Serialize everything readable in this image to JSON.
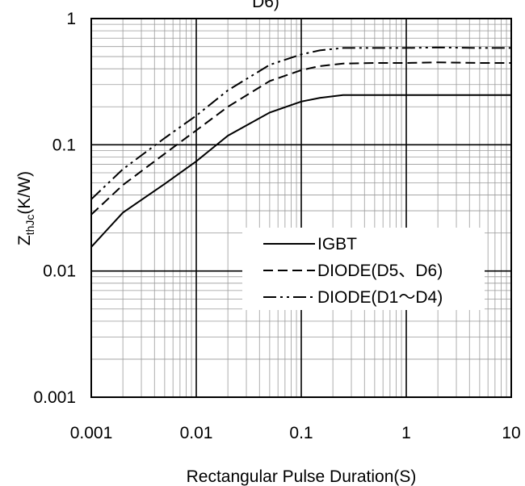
{
  "chart_data": {
    "type": "line",
    "title_fragment": "D6)",
    "xlabel": "Rectangular Pulse Duration(S)",
    "ylabel": {
      "main": "Z",
      "sub": "thJc",
      "unit": "(K/W)"
    },
    "x_scale": "log",
    "y_scale": "log",
    "xlim": [
      0.001,
      10
    ],
    "ylim": [
      0.001,
      1
    ],
    "x_ticks": [
      0.001,
      0.01,
      0.1,
      1,
      10
    ],
    "x_tick_labels": [
      "0.001",
      "0.01",
      "0.1",
      "1",
      "10"
    ],
    "y_ticks": [
      0.001,
      0.01,
      0.1,
      1
    ],
    "y_tick_labels": [
      "0.001",
      "0.01",
      "0.1",
      "1"
    ],
    "grid": true,
    "legend_position": "center-right",
    "series": [
      {
        "name": "IGBT",
        "line_style": "solid",
        "x": [
          0.001,
          0.002,
          0.005,
          0.01,
          0.02,
          0.05,
          0.1,
          0.15,
          0.25,
          0.5,
          1,
          2,
          5,
          10
        ],
        "y": [
          0.0155,
          0.029,
          0.049,
          0.074,
          0.118,
          0.18,
          0.22,
          0.235,
          0.248,
          0.248,
          0.248,
          0.248,
          0.248,
          0.248
        ]
      },
      {
        "name": "DIODE(D5、D6)",
        "line_style": "dashed",
        "x": [
          0.001,
          0.002,
          0.005,
          0.01,
          0.02,
          0.05,
          0.1,
          0.15,
          0.25,
          0.5,
          1,
          2,
          5,
          10
        ],
        "y": [
          0.028,
          0.048,
          0.085,
          0.13,
          0.2,
          0.32,
          0.39,
          0.42,
          0.44,
          0.445,
          0.445,
          0.45,
          0.445,
          0.445
        ]
      },
      {
        "name": "DIODE(D1～D4)",
        "line_style": "dash-dot-dot",
        "x": [
          0.001,
          0.002,
          0.005,
          0.01,
          0.02,
          0.05,
          0.1,
          0.15,
          0.25,
          0.5,
          1,
          2,
          5,
          10
        ],
        "y": [
          0.037,
          0.064,
          0.113,
          0.17,
          0.27,
          0.43,
          0.52,
          0.56,
          0.585,
          0.585,
          0.585,
          0.59,
          0.585,
          0.585
        ]
      }
    ]
  }
}
